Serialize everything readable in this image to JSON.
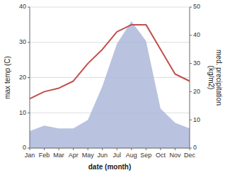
{
  "chart_data": {
    "type": "line",
    "categories": [
      "Jan",
      "Feb",
      "Mar",
      "Apr",
      "May",
      "Jun",
      "Jul",
      "Aug",
      "Sep",
      "Oct",
      "Nov",
      "Dec"
    ],
    "series": [
      {
        "type": "line",
        "color": "#c0504d",
        "values": [
          14,
          16,
          17,
          19,
          24,
          28,
          33,
          35,
          35,
          28,
          21,
          19
        ]
      },
      {
        "type": "area",
        "color": "#adb9da",
        "axis": "y2",
        "values": [
          6,
          8,
          7,
          7,
          10,
          22,
          37,
          45,
          38,
          14,
          9,
          7
        ]
      }
    ],
    "xlabel": "date (month)",
    "ylabel": "max temp (C)",
    "y2label": "med. precipitation\n(kg/m2)",
    "ylim": [
      0,
      40
    ],
    "yticks": [
      0,
      10,
      20,
      30,
      40
    ],
    "y2lim": [
      0,
      50
    ],
    "y2ticks": [
      0,
      10,
      20,
      30,
      40,
      50
    ],
    "grid": true
  }
}
